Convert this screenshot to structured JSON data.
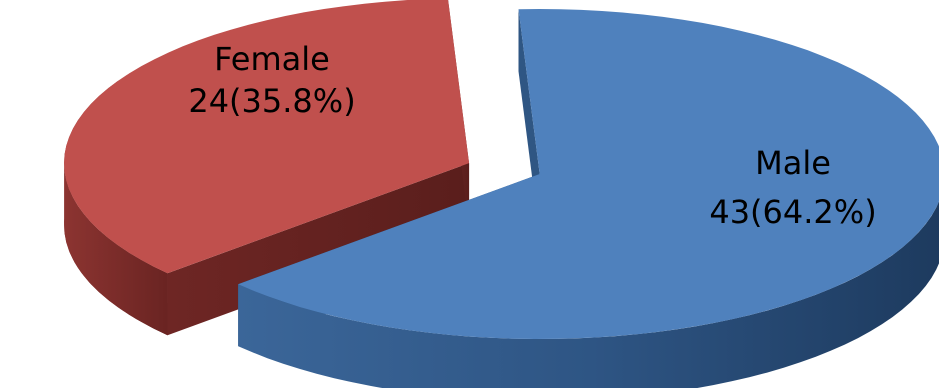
{
  "chart_data": {
    "type": "pie",
    "style": "3d-exploded",
    "title": "",
    "slices": [
      {
        "category": "Male",
        "count": 43,
        "percent_label": "43(64.2%)",
        "percent": 64.2,
        "color": "#4F81BD"
      },
      {
        "category": "Female",
        "count": 24,
        "percent_label": "24(35.8%)",
        "percent": 35.8,
        "color": "#C0504D"
      }
    ],
    "legend": "none",
    "data_labels": "inside"
  }
}
